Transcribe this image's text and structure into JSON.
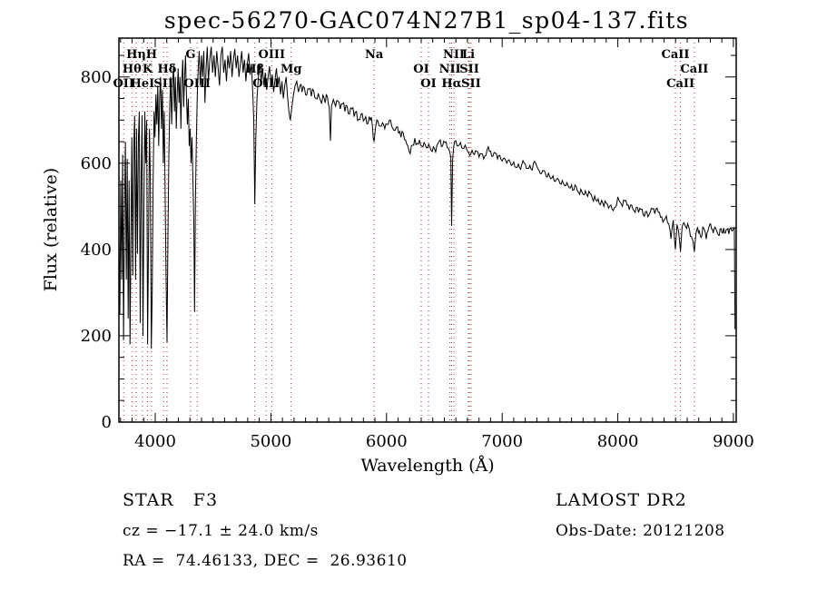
{
  "footer": {
    "class_label": "STAR   F3",
    "survey": "LAMOST DR2",
    "cz": "cz = −17.1 ± 24.0 km/s",
    "obs_date": "Obs-Date: 20121208",
    "coords": "RA =  74.46133, DEC =  26.93610"
  },
  "chart_data": {
    "type": "line",
    "title": "spec-56270-GAC074N27B1_sp04-137.fits",
    "xlabel": "Wavelength (Å)",
    "ylabel": "Flux (relative)",
    "xlim": [
      3686,
      9024
    ],
    "ylim": [
      0,
      890
    ],
    "x_ticks": [
      4000,
      5000,
      6000,
      7000,
      8000,
      9000
    ],
    "y_ticks": [
      0,
      200,
      400,
      600,
      800
    ],
    "x_minor_step": 100,
    "y_minor_step": 50,
    "grid": false,
    "legend": "none",
    "line_color": "#000000",
    "marker_line_color": "#9e3a2b",
    "spectral_lines": [
      {
        "label": "OII",
        "wavelength": 3727,
        "row": 3
      },
      {
        "label": "Hθ",
        "wavelength": 3798,
        "row": 2
      },
      {
        "label": "Hη",
        "wavelength": 3835,
        "row": 1
      },
      {
        "label": "HeI",
        "wavelength": 3889,
        "row": 3
      },
      {
        "label": "K",
        "wavelength": 3933,
        "row": 2
      },
      {
        "label": "H",
        "wavelength": 3968,
        "row": 1
      },
      {
        "label": "SII",
        "wavelength": 4072,
        "row": 3
      },
      {
        "label": "Hδ",
        "wavelength": 4102,
        "row": 2
      },
      {
        "label": "G",
        "wavelength": 4305,
        "row": 1
      },
      {
        "label": "OIII",
        "wavelength": 4363,
        "row": 3
      },
      {
        "label": "Hβ",
        "wavelength": 4861,
        "row": 2
      },
      {
        "label": "OIII",
        "wavelength": 4959,
        "row": 3
      },
      {
        "label": "OIII",
        "wavelength": 5007,
        "row": 1
      },
      {
        "label": "Mg",
        "wavelength": 5175,
        "row": 2
      },
      {
        "label": "Na",
        "wavelength": 5893,
        "row": 1
      },
      {
        "label": "OI",
        "wavelength": 6300,
        "row": 2
      },
      {
        "label": "OI",
        "wavelength": 6363,
        "row": 3
      },
      {
        "label": "NII",
        "wavelength": 6548,
        "row": 2
      },
      {
        "label": "Hα",
        "wavelength": 6563,
        "row": 3
      },
      {
        "label": "NII",
        "wavelength": 6583,
        "row": 1
      },
      {
        "label": "Li",
        "wavelength": 6708,
        "row": 1
      },
      {
        "label": "SII",
        "wavelength": 6716,
        "row": 2
      },
      {
        "label": "SII",
        "wavelength": 6731,
        "row": 3
      },
      {
        "label": "CaII",
        "wavelength": 8498,
        "row": 1
      },
      {
        "label": "CaII",
        "wavelength": 8542,
        "row": 3
      },
      {
        "label": "CaII",
        "wavelength": 8662,
        "row": 2
      }
    ],
    "noise_regions": [
      [
        3686,
        4450,
        45
      ],
      [
        4450,
        5250,
        30
      ],
      [
        5250,
        5900,
        14
      ],
      [
        5900,
        6560,
        9
      ],
      [
        6560,
        7600,
        6
      ],
      [
        7600,
        9020,
        9
      ]
    ],
    "spectrum_points": [
      [
        3686,
        430
      ],
      [
        3694,
        250
      ],
      [
        3702,
        560
      ],
      [
        3710,
        330
      ],
      [
        3718,
        620
      ],
      [
        3726,
        190
      ],
      [
        3734,
        480
      ],
      [
        3742,
        650
      ],
      [
        3750,
        330
      ],
      [
        3758,
        610
      ],
      [
        3766,
        240
      ],
      [
        3774,
        560
      ],
      [
        3782,
        180
      ],
      [
        3790,
        430
      ],
      [
        3798,
        660
      ],
      [
        3806,
        340
      ],
      [
        3814,
        630
      ],
      [
        3822,
        710
      ],
      [
        3830,
        330
      ],
      [
        3838,
        680
      ],
      [
        3846,
        390
      ],
      [
        3854,
        650
      ],
      [
        3862,
        720
      ],
      [
        3870,
        230
      ],
      [
        3878,
        560
      ],
      [
        3886,
        710
      ],
      [
        3894,
        200
      ],
      [
        3902,
        480
      ],
      [
        3910,
        720
      ],
      [
        3918,
        600
      ],
      [
        3926,
        700
      ],
      [
        3934,
        180
      ],
      [
        3942,
        420
      ],
      [
        3950,
        680
      ],
      [
        3958,
        560
      ],
      [
        3966,
        170
      ],
      [
        3974,
        300
      ],
      [
        3982,
        560
      ],
      [
        3990,
        720
      ],
      [
        3998,
        660
      ],
      [
        4006,
        760
      ],
      [
        4014,
        690
      ],
      [
        4022,
        780
      ],
      [
        4030,
        640
      ],
      [
        4038,
        750
      ],
      [
        4046,
        800
      ],
      [
        4054,
        680
      ],
      [
        4062,
        770
      ],
      [
        4070,
        600
      ],
      [
        4078,
        720
      ],
      [
        4086,
        520
      ],
      [
        4094,
        330
      ],
      [
        4102,
        185
      ],
      [
        4110,
        430
      ],
      [
        4118,
        620
      ],
      [
        4126,
        740
      ],
      [
        4134,
        800
      ],
      [
        4142,
        690
      ],
      [
        4150,
        780
      ],
      [
        4158,
        830
      ],
      [
        4166,
        720
      ],
      [
        4174,
        800
      ],
      [
        4182,
        680
      ],
      [
        4190,
        760
      ],
      [
        4198,
        820
      ],
      [
        4206,
        740
      ],
      [
        4214,
        800
      ],
      [
        4222,
        680
      ],
      [
        4230,
        790
      ],
      [
        4238,
        840
      ],
      [
        4246,
        730
      ],
      [
        4254,
        800
      ],
      [
        4262,
        850
      ],
      [
        4270,
        760
      ],
      [
        4278,
        690
      ],
      [
        4286,
        750
      ],
      [
        4294,
        640
      ],
      [
        4302,
        680
      ],
      [
        4310,
        600
      ],
      [
        4318,
        660
      ],
      [
        4326,
        560
      ],
      [
        4334,
        460
      ],
      [
        4340,
        255
      ],
      [
        4348,
        520
      ],
      [
        4356,
        660
      ],
      [
        4364,
        760
      ],
      [
        4372,
        820
      ],
      [
        4380,
        860
      ],
      [
        4390,
        780
      ],
      [
        4400,
        850
      ],
      [
        4410,
        800
      ],
      [
        4420,
        860
      ],
      [
        4430,
        740
      ],
      [
        4440,
        820
      ],
      [
        4450,
        870
      ],
      [
        4460,
        790
      ],
      [
        4472,
        840
      ],
      [
        4484,
        870
      ],
      [
        4496,
        810
      ],
      [
        4508,
        850
      ],
      [
        4520,
        800
      ],
      [
        4532,
        860
      ],
      [
        4544,
        820
      ],
      [
        4556,
        780
      ],
      [
        4568,
        850
      ],
      [
        4580,
        870
      ],
      [
        4592,
        810
      ],
      [
        4604,
        840
      ],
      [
        4616,
        790
      ],
      [
        4628,
        850
      ],
      [
        4640,
        820
      ],
      [
        4652,
        860
      ],
      [
        4664,
        800
      ],
      [
        4676,
        840
      ],
      [
        4688,
        865
      ],
      [
        4700,
        820
      ],
      [
        4712,
        850
      ],
      [
        4724,
        800
      ],
      [
        4736,
        830
      ],
      [
        4748,
        860
      ],
      [
        4760,
        810
      ],
      [
        4772,
        840
      ],
      [
        4784,
        790
      ],
      [
        4796,
        830
      ],
      [
        4808,
        855
      ],
      [
        4820,
        805
      ],
      [
        4832,
        830
      ],
      [
        4844,
        760
      ],
      [
        4852,
        700
      ],
      [
        4861,
        505
      ],
      [
        4870,
        660
      ],
      [
        4880,
        750
      ],
      [
        4892,
        800
      ],
      [
        4904,
        830
      ],
      [
        4916,
        790
      ],
      [
        4928,
        820
      ],
      [
        4940,
        780
      ],
      [
        4952,
        810
      ],
      [
        4964,
        770
      ],
      [
        4976,
        800
      ],
      [
        4988,
        825
      ],
      [
        5000,
        785
      ],
      [
        5012,
        805
      ],
      [
        5024,
        765
      ],
      [
        5036,
        795
      ],
      [
        5048,
        820
      ],
      [
        5060,
        780
      ],
      [
        5072,
        800
      ],
      [
        5084,
        760
      ],
      [
        5096,
        790
      ],
      [
        5108,
        750
      ],
      [
        5120,
        780
      ],
      [
        5132,
        800
      ],
      [
        5144,
        755
      ],
      [
        5156,
        720
      ],
      [
        5168,
        700
      ],
      [
        5175,
        715
      ],
      [
        5184,
        735
      ],
      [
        5196,
        760
      ],
      [
        5210,
        780
      ],
      [
        5224,
        790
      ],
      [
        5238,
        765
      ],
      [
        5252,
        780
      ],
      [
        5270,
        765
      ],
      [
        5290,
        775
      ],
      [
        5310,
        758
      ],
      [
        5330,
        772
      ],
      [
        5350,
        755
      ],
      [
        5370,
        768
      ],
      [
        5390,
        750
      ],
      [
        5410,
        762
      ],
      [
        5430,
        745
      ],
      [
        5450,
        758
      ],
      [
        5470,
        740
      ],
      [
        5490,
        752
      ],
      [
        5505,
        730
      ],
      [
        5515,
        652
      ],
      [
        5525,
        735
      ],
      [
        5540,
        748
      ],
      [
        5560,
        732
      ],
      [
        5580,
        744
      ],
      [
        5600,
        726
      ],
      [
        5620,
        738
      ],
      [
        5640,
        720
      ],
      [
        5660,
        732
      ],
      [
        5680,
        714
      ],
      [
        5700,
        726
      ],
      [
        5720,
        708
      ],
      [
        5740,
        720
      ],
      [
        5760,
        702
      ],
      [
        5780,
        714
      ],
      [
        5800,
        698
      ],
      [
        5820,
        708
      ],
      [
        5840,
        692
      ],
      [
        5860,
        700
      ],
      [
        5878,
        686
      ],
      [
        5893,
        650
      ],
      [
        5908,
        688
      ],
      [
        5925,
        698
      ],
      [
        5945,
        686
      ],
      [
        5965,
        694
      ],
      [
        5985,
        680
      ],
      [
        6005,
        690
      ],
      [
        6025,
        700
      ],
      [
        6045,
        686
      ],
      [
        6065,
        676
      ],
      [
        6085,
        684
      ],
      [
        6105,
        670
      ],
      [
        6125,
        660
      ],
      [
        6145,
        670
      ],
      [
        6165,
        654
      ],
      [
        6185,
        640
      ],
      [
        6205,
        622
      ],
      [
        6225,
        642
      ],
      [
        6245,
        658
      ],
      [
        6265,
        646
      ],
      [
        6285,
        654
      ],
      [
        6305,
        640
      ],
      [
        6325,
        648
      ],
      [
        6345,
        636
      ],
      [
        6365,
        644
      ],
      [
        6385,
        630
      ],
      [
        6405,
        638
      ],
      [
        6425,
        626
      ],
      [
        6445,
        646
      ],
      [
        6465,
        654
      ],
      [
        6485,
        640
      ],
      [
        6505,
        648
      ],
      [
        6525,
        636
      ],
      [
        6545,
        628
      ],
      [
        6556,
        615
      ],
      [
        6563,
        455
      ],
      [
        6572,
        610
      ],
      [
        6582,
        640
      ],
      [
        6600,
        652
      ],
      [
        6620,
        640
      ],
      [
        6640,
        648
      ],
      [
        6660,
        634
      ],
      [
        6680,
        642
      ],
      [
        6700,
        628
      ],
      [
        6720,
        618
      ],
      [
        6740,
        630
      ],
      [
        6760,
        620
      ],
      [
        6780,
        628
      ],
      [
        6800,
        614
      ],
      [
        6820,
        622
      ],
      [
        6840,
        610
      ],
      [
        6860,
        618
      ],
      [
        6880,
        638
      ],
      [
        6900,
        628
      ],
      [
        6920,
        616
      ],
      [
        6940,
        624
      ],
      [
        6960,
        610
      ],
      [
        6980,
        618
      ],
      [
        7000,
        605
      ],
      [
        7020,
        612
      ],
      [
        7040,
        600
      ],
      [
        7060,
        608
      ],
      [
        7080,
        595
      ],
      [
        7100,
        603
      ],
      [
        7120,
        590
      ],
      [
        7140,
        598
      ],
      [
        7160,
        586
      ],
      [
        7180,
        606
      ],
      [
        7200,
        598
      ],
      [
        7220,
        588
      ],
      [
        7240,
        595
      ],
      [
        7260,
        584
      ],
      [
        7280,
        604
      ],
      [
        7300,
        593
      ],
      [
        7320,
        583
      ],
      [
        7340,
        576
      ],
      [
        7360,
        583
      ],
      [
        7380,
        570
      ],
      [
        7400,
        577
      ],
      [
        7420,
        564
      ],
      [
        7440,
        571
      ],
      [
        7460,
        558
      ],
      [
        7480,
        565
      ],
      [
        7500,
        553
      ],
      [
        7520,
        560
      ],
      [
        7540,
        548
      ],
      [
        7560,
        555
      ],
      [
        7580,
        543
      ],
      [
        7600,
        550
      ],
      [
        7620,
        538
      ],
      [
        7640,
        546
      ],
      [
        7660,
        533
      ],
      [
        7680,
        540
      ],
      [
        7700,
        528
      ],
      [
        7720,
        536
      ],
      [
        7740,
        523
      ],
      [
        7760,
        530
      ],
      [
        7780,
        518
      ],
      [
        7800,
        524
      ],
      [
        7820,
        512
      ],
      [
        7840,
        506
      ],
      [
        7860,
        514
      ],
      [
        7880,
        500
      ],
      [
        7900,
        508
      ],
      [
        7920,
        496
      ],
      [
        7940,
        503
      ],
      [
        7960,
        490
      ],
      [
        7980,
        498
      ],
      [
        8000,
        522
      ],
      [
        8020,
        510
      ],
      [
        8040,
        500
      ],
      [
        8060,
        513
      ],
      [
        8080,
        503
      ],
      [
        8100,
        492
      ],
      [
        8120,
        503
      ],
      [
        8140,
        490
      ],
      [
        8160,
        498
      ],
      [
        8180,
        486
      ],
      [
        8200,
        493
      ],
      [
        8220,
        480
      ],
      [
        8240,
        488
      ],
      [
        8260,
        476
      ],
      [
        8280,
        486
      ],
      [
        8300,
        494
      ],
      [
        8320,
        483
      ],
      [
        8340,
        496
      ],
      [
        8360,
        486
      ],
      [
        8380,
        476
      ],
      [
        8400,
        468
      ],
      [
        8420,
        478
      ],
      [
        8440,
        460
      ],
      [
        8460,
        425
      ],
      [
        8480,
        468
      ],
      [
        8498,
        400
      ],
      [
        8512,
        458
      ],
      [
        8526,
        442
      ],
      [
        8542,
        395
      ],
      [
        8556,
        452
      ],
      [
        8572,
        462
      ],
      [
        8588,
        452
      ],
      [
        8604,
        460
      ],
      [
        8620,
        446
      ],
      [
        8636,
        430
      ],
      [
        8650,
        420
      ],
      [
        8662,
        395
      ],
      [
        8676,
        438
      ],
      [
        8690,
        452
      ],
      [
        8705,
        443
      ],
      [
        8720,
        428
      ],
      [
        8735,
        452
      ],
      [
        8750,
        445
      ],
      [
        8765,
        424
      ],
      [
        8780,
        443
      ],
      [
        8795,
        458
      ],
      [
        8810,
        448
      ],
      [
        8825,
        438
      ],
      [
        8840,
        452
      ],
      [
        8855,
        443
      ],
      [
        8870,
        433
      ],
      [
        8885,
        448
      ],
      [
        8900,
        440
      ],
      [
        8915,
        450
      ],
      [
        8930,
        438
      ],
      [
        8945,
        446
      ],
      [
        8960,
        436
      ],
      [
        8975,
        450
      ],
      [
        8990,
        443
      ],
      [
        9002,
        448
      ],
      [
        9008,
        452
      ],
      [
        9011,
        330
      ],
      [
        9014,
        215
      ]
    ]
  }
}
